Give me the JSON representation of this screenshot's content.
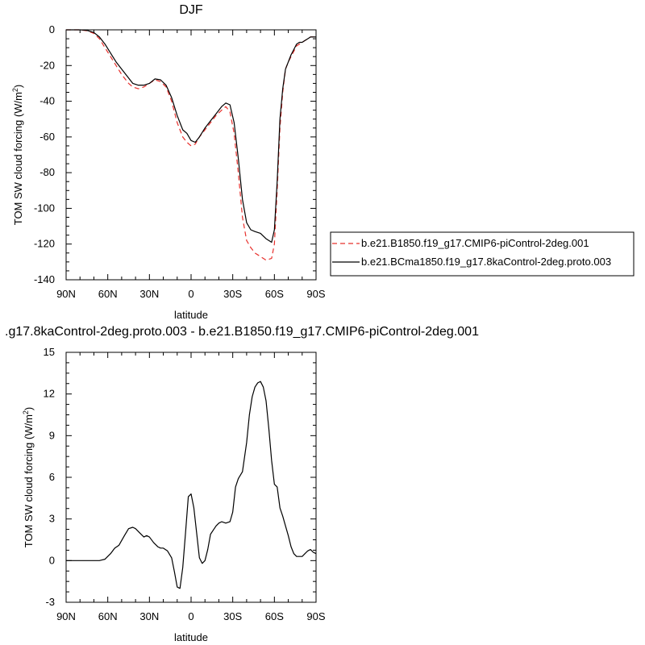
{
  "charts": [
    {
      "type": "line",
      "title": "DJF",
      "xlabel": "latitude",
      "ylabel": "TOM SW cloud forcing (W/m",
      "ylabel_sup": "2",
      "ylabel_end": ")",
      "xlim": [
        90,
        -90
      ],
      "ylim": [
        -140,
        0
      ],
      "xticks": [
        {
          "value": 90,
          "label": "90N"
        },
        {
          "value": 60,
          "label": "60N"
        },
        {
          "value": 30,
          "label": "30N"
        },
        {
          "value": 0,
          "label": "0"
        },
        {
          "value": -30,
          "label": "30S"
        },
        {
          "value": -60,
          "label": "60S"
        },
        {
          "value": -90,
          "label": "90S"
        }
      ],
      "yticks": [
        0,
        -20,
        -40,
        -60,
        -80,
        -100,
        -120,
        -140
      ],
      "grid": false,
      "legend_position": "right",
      "series": [
        {
          "name": "b.e21.B1850.f19_g17.CMIP6-piControl-2deg.001",
          "color": "#e8302c",
          "dash": "dashed",
          "x": [
            90,
            80,
            75,
            70,
            66,
            62,
            58,
            54,
            50,
            45,
            42,
            38,
            34,
            30,
            26,
            22,
            18,
            14,
            10,
            6,
            3,
            0,
            -3,
            -6,
            -10,
            -14,
            -18,
            -22,
            -25,
            -28,
            -31,
            -34,
            -37,
            -40,
            -43,
            -46,
            -50,
            -54,
            -58,
            -60,
            -62,
            -64,
            -66,
            -68,
            -70,
            -72,
            -74,
            -76,
            -78,
            -80,
            -82,
            -84,
            -86,
            -88,
            -90
          ],
          "y": [
            0,
            0,
            -0.5,
            -2,
            -5,
            -10,
            -15,
            -20,
            -25,
            -30,
            -32,
            -33,
            -32,
            -30,
            -28,
            -29,
            -32,
            -40,
            -52,
            -60,
            -63,
            -65,
            -64,
            -60,
            -56,
            -52,
            -48,
            -45,
            -43,
            -46,
            -58,
            -80,
            -105,
            -118,
            -122,
            -125,
            -127,
            -129,
            -128,
            -120,
            -90,
            -55,
            -35,
            -22,
            -18,
            -15,
            -12,
            -9,
            -8,
            -7,
            -6,
            -5,
            -4,
            -4,
            -4
          ]
        },
        {
          "name": "b.e21.BCma1850.f19_g17.8kaControl-2deg.proto.003",
          "color": "#000000",
          "dash": "solid",
          "x": [
            90,
            80,
            75,
            70,
            66,
            62,
            58,
            54,
            50,
            45,
            42,
            38,
            34,
            30,
            26,
            22,
            18,
            14,
            10,
            6,
            3,
            0,
            -3,
            -6,
            -10,
            -14,
            -18,
            -22,
            -25,
            -28,
            -31,
            -34,
            -37,
            -40,
            -43,
            -46,
            -50,
            -54,
            -58,
            -60,
            -62,
            -64,
            -66,
            -68,
            -70,
            -72,
            -74,
            -76,
            -78,
            -80,
            -82,
            -84,
            -86,
            -88,
            -90
          ],
          "y": [
            0,
            0,
            -0.3,
            -1.5,
            -4,
            -8,
            -13,
            -18,
            -22,
            -27,
            -30,
            -31,
            -31,
            -30,
            -27.5,
            -28,
            -31,
            -38,
            -48,
            -56,
            -58,
            -62,
            -63,
            -60,
            -55,
            -51,
            -47,
            -43,
            -41,
            -42,
            -52,
            -72,
            -95,
            -108,
            -112,
            -113,
            -114,
            -117,
            -119,
            -112,
            -85,
            -50,
            -33,
            -22,
            -18,
            -14,
            -11,
            -8,
            -7,
            -7,
            -6,
            -5,
            -4,
            -4,
            -4
          ]
        }
      ]
    },
    {
      "type": "line",
      "title": ".g17.8kaControl-2deg.proto.003 - b.e21.B1850.f19_g17.CMIP6-piControl-2deg.001",
      "xlabel": "latitude",
      "ylabel": "TOM SW cloud forcing (W/m",
      "ylabel_sup": "2",
      "ylabel_end": ")",
      "xlim": [
        90,
        -90
      ],
      "ylim": [
        -3,
        15
      ],
      "xticks": [
        {
          "value": 90,
          "label": "90N"
        },
        {
          "value": 60,
          "label": "60N"
        },
        {
          "value": 30,
          "label": "30N"
        },
        {
          "value": 0,
          "label": "0"
        },
        {
          "value": -30,
          "label": "30S"
        },
        {
          "value": -60,
          "label": "60S"
        },
        {
          "value": -90,
          "label": "90S"
        }
      ],
      "yticks": [
        15,
        12,
        9,
        6,
        3,
        0,
        -3
      ],
      "grid": false,
      "series": [
        {
          "name": "",
          "color": "#000000",
          "dash": "solid",
          "x": [
            90,
            80,
            75,
            70,
            66,
            62,
            58,
            55,
            52,
            48,
            45,
            42,
            40,
            37,
            34,
            32,
            30,
            27,
            24,
            22,
            20,
            17,
            14,
            12,
            10,
            8,
            6,
            4,
            2,
            0,
            -2,
            -4,
            -6,
            -8,
            -10,
            -12,
            -14,
            -16,
            -18,
            -20,
            -22,
            -25,
            -28,
            -30,
            -32,
            -34,
            -37,
            -40,
            -42,
            -44,
            -46,
            -48,
            -50,
            -52,
            -54,
            -56,
            -58,
            -60,
            -62,
            -64,
            -66,
            -68,
            -70,
            -72,
            -74,
            -76,
            -78,
            -80,
            -82,
            -84,
            -86,
            -88,
            -90
          ],
          "y": [
            0,
            0,
            0,
            0,
            0,
            0.1,
            0.5,
            0.9,
            1.1,
            1.8,
            2.3,
            2.4,
            2.3,
            2.0,
            1.7,
            1.8,
            1.7,
            1.3,
            1.0,
            0.9,
            0.9,
            0.7,
            0.2,
            -0.8,
            -1.9,
            -2.0,
            -0.5,
            2.0,
            4.6,
            4.8,
            3.8,
            2.0,
            0.2,
            -0.2,
            0.0,
            0.8,
            1.9,
            2.2,
            2.5,
            2.7,
            2.8,
            2.7,
            2.8,
            3.5,
            5.3,
            5.9,
            6.4,
            8.5,
            10.5,
            11.8,
            12.5,
            12.8,
            12.9,
            12.5,
            11.5,
            9.5,
            7.2,
            5.5,
            5.3,
            3.8,
            3.2,
            2.5,
            1.8,
            1.0,
            0.5,
            0.3,
            0.3,
            0.3,
            0.5,
            0.7,
            0.8,
            0.6,
            0.5
          ]
        }
      ]
    }
  ]
}
